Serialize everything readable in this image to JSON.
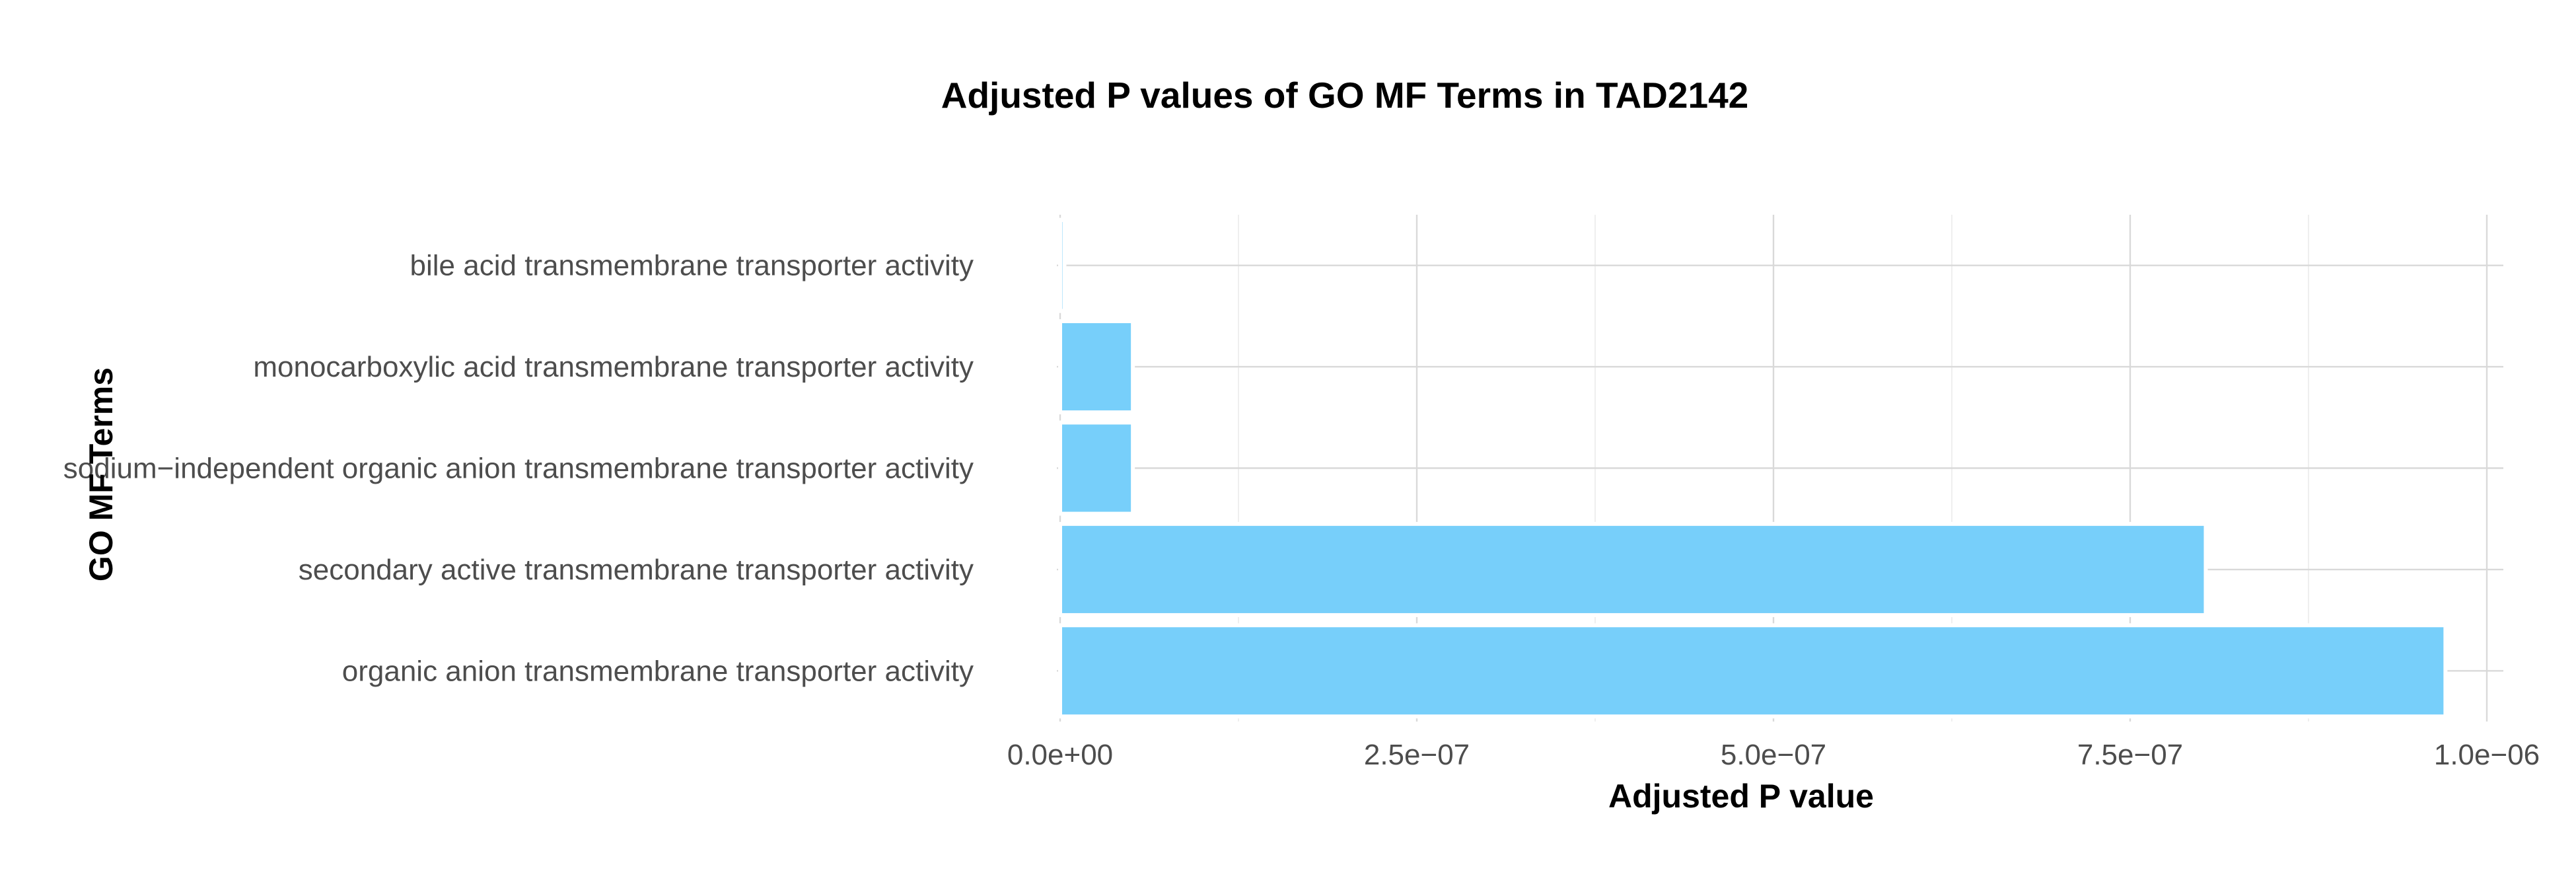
{
  "chart_data": {
    "type": "bar",
    "orientation": "horizontal",
    "title": "Adjusted P values of GO MF Terms in TAD2142",
    "xlabel": "Adjusted P value",
    "ylabel": "GO MF Terms",
    "categories": [
      "bile acid transmembrane transporter activity",
      "monocarboxylic acid transmembrane transporter activity",
      "sodium−independent organic anion transmembrane transporter activity",
      "secondary active transmembrane transporter activity",
      "organic anion transmembrane transporter activity"
    ],
    "values": [
      3e-09,
      5.1e-08,
      5.1e-08,
      8.03e-07,
      9.71e-07
    ],
    "xlim": [
      0,
      1.02e-06
    ],
    "xticks": [
      0,
      2.5e-07,
      5e-07,
      7.5e-07,
      1e-06
    ],
    "xtick_labels": [
      "0.0e+00",
      "2.5e−07",
      "5.0e−07",
      "7.5e−07",
      "1.0e−06"
    ],
    "grid": true,
    "legend": "none",
    "bar_color": "#74CEFA"
  }
}
